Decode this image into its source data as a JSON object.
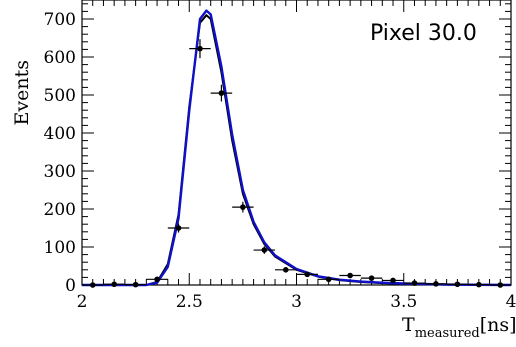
{
  "chart_data": {
    "type": "line",
    "title": "",
    "annotation": "Pixel 30.0",
    "xlabel_main": "T",
    "xlabel_sub": "measured",
    "xlabel_unit": "[ns]",
    "ylabel": "Events",
    "xlim": [
      2.0,
      4.0
    ],
    "ylim": [
      0,
      750
    ],
    "xticks": [
      2,
      2.5,
      3,
      3.5,
      4
    ],
    "xtick_labels": [
      "2",
      "2.5",
      "3",
      "3.5",
      "4"
    ],
    "yticks": [
      0,
      100,
      200,
      300,
      400,
      500,
      600,
      700
    ],
    "ytick_labels": [
      "0",
      "100",
      "200",
      "300",
      "400",
      "500",
      "600",
      "700"
    ],
    "bin_halfwidth": 0.05,
    "data_points": [
      {
        "x": 2.05,
        "y": 0,
        "yerr": 0
      },
      {
        "x": 2.15,
        "y": 2,
        "yerr": 1.4
      },
      {
        "x": 2.25,
        "y": 1,
        "yerr": 1
      },
      {
        "x": 2.35,
        "y": 15,
        "yerr": 4
      },
      {
        "x": 2.45,
        "y": 150,
        "yerr": 12
      },
      {
        "x": 2.55,
        "y": 622,
        "yerr": 25
      },
      {
        "x": 2.65,
        "y": 505,
        "yerr": 22
      },
      {
        "x": 2.75,
        "y": 205,
        "yerr": 14
      },
      {
        "x": 2.85,
        "y": 92,
        "yerr": 10
      },
      {
        "x": 2.95,
        "y": 40,
        "yerr": 6
      },
      {
        "x": 3.05,
        "y": 28,
        "yerr": 5
      },
      {
        "x": 3.15,
        "y": 15,
        "yerr": 4
      },
      {
        "x": 3.25,
        "y": 25,
        "yerr": 5
      },
      {
        "x": 3.35,
        "y": 18,
        "yerr": 4
      },
      {
        "x": 3.45,
        "y": 12,
        "yerr": 3.5
      },
      {
        "x": 3.55,
        "y": 5,
        "yerr": 2.2
      },
      {
        "x": 3.65,
        "y": 3,
        "yerr": 1.7
      },
      {
        "x": 3.75,
        "y": 2,
        "yerr": 1.4
      },
      {
        "x": 3.85,
        "y": 1,
        "yerr": 1
      },
      {
        "x": 3.95,
        "y": 0,
        "yerr": 0
      }
    ],
    "series": [
      {
        "color": "#000000",
        "x": [
          2.0,
          2.3,
          2.35,
          2.4,
          2.45,
          2.5,
          2.55,
          2.58,
          2.6,
          2.65,
          2.7,
          2.75,
          2.8,
          2.85,
          2.9,
          3.0,
          3.1,
          3.2,
          3.3,
          3.4,
          3.5,
          3.7,
          4.0
        ],
        "y": [
          0,
          0,
          8,
          55,
          185,
          470,
          690,
          710,
          700,
          560,
          380,
          240,
          160,
          108,
          75,
          40,
          22,
          13,
          8,
          5,
          3,
          1,
          0
        ]
      },
      {
        "color": "#1010c8",
        "x": [
          2.0,
          2.3,
          2.35,
          2.4,
          2.45,
          2.5,
          2.55,
          2.58,
          2.6,
          2.65,
          2.7,
          2.75,
          2.8,
          2.85,
          2.9,
          3.0,
          3.1,
          3.2,
          3.3,
          3.4,
          3.5,
          3.7,
          4.0
        ],
        "y": [
          0,
          0,
          6,
          48,
          175,
          460,
          700,
          722,
          712,
          575,
          395,
          250,
          166,
          112,
          78,
          42,
          23,
          14,
          9,
          6,
          4,
          1,
          0
        ]
      }
    ],
    "grid": false,
    "legend": "none"
  }
}
